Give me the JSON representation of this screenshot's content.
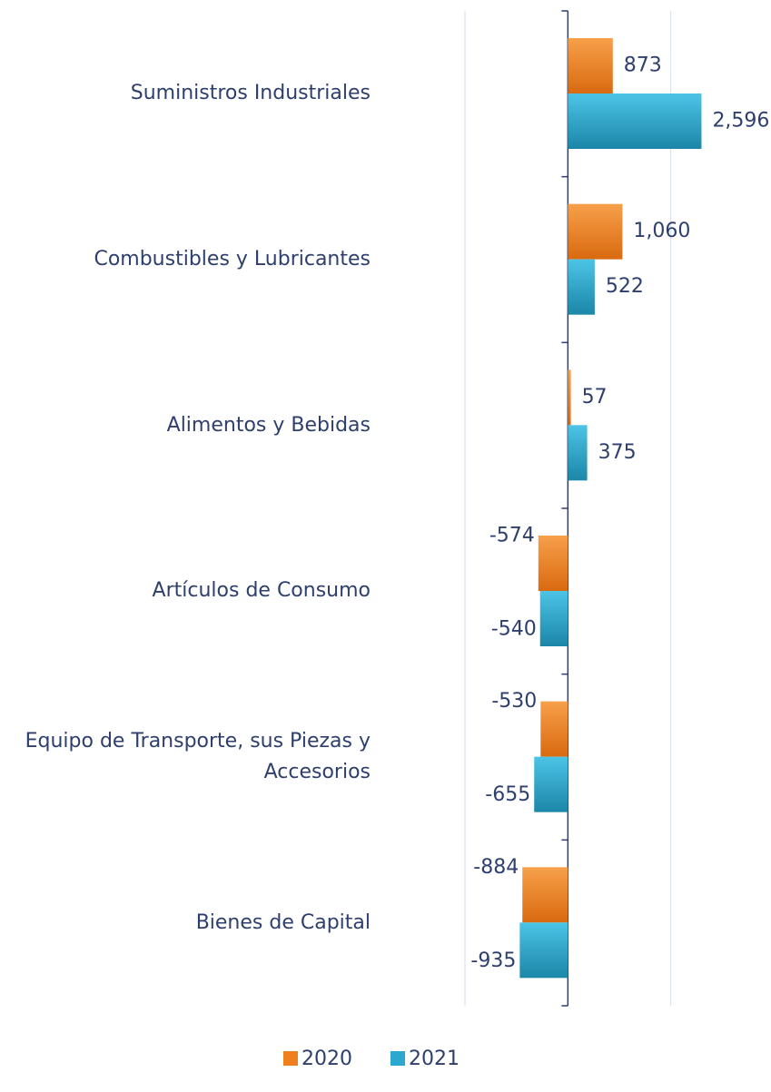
{
  "chart_data": {
    "type": "hbar",
    "categories": [
      "Suministros Industriales",
      "Combustibles y Lubricantes",
      "Alimentos y Bebidas",
      "Artículos de Consumo",
      "Equipo de Transporte, sus Piezas y Accesorios",
      "Bienes de Capital"
    ],
    "series": [
      {
        "name": "2020",
        "color": "#f0801e",
        "values": [
          873,
          1060,
          57,
          -574,
          -530,
          -884
        ],
        "value_labels": [
          "873",
          "1,060",
          "57",
          "-574",
          "-530",
          "-884"
        ]
      },
      {
        "name": "2021",
        "color": "#2aa8cf",
        "values": [
          2596,
          522,
          375,
          -540,
          -655,
          -935
        ],
        "value_labels": [
          "2,596",
          "522",
          "375",
          "-540",
          "-655",
          "-935"
        ]
      }
    ],
    "xlim": [
      -2000,
      4000
    ],
    "xticks": [
      -2000,
      0,
      2000
    ],
    "grid": true,
    "legend": "bottom"
  }
}
